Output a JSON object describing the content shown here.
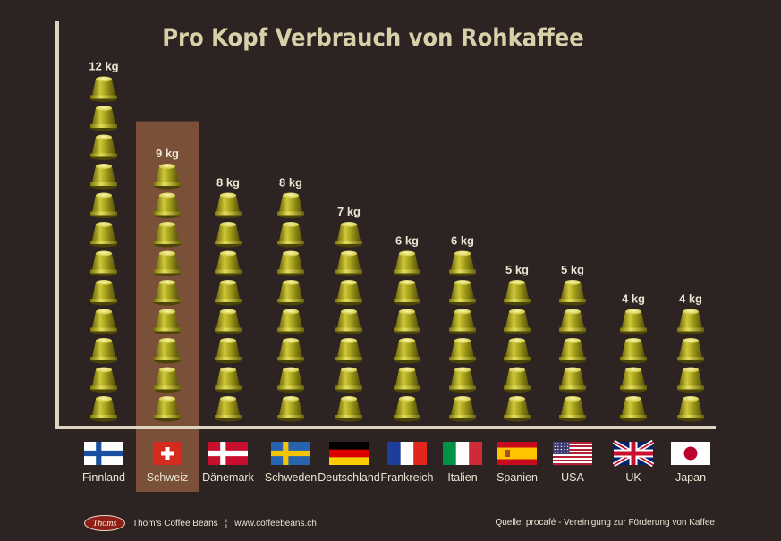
{
  "chart_data": {
    "type": "bar",
    "title": "Pro Kopf Verbrauch von Rohkaffee",
    "unit": "kg",
    "categories": [
      "Finnland",
      "Schweiz",
      "Dänemark",
      "Schweden",
      "Deutschland",
      "Frankreich",
      "Italien",
      "Spanien",
      "USA",
      "UK",
      "Japan"
    ],
    "values": [
      12,
      9,
      8,
      8,
      7,
      6,
      6,
      5,
      5,
      4,
      4
    ],
    "value_labels": [
      "12 kg",
      "9 kg",
      "8 kg",
      "8 kg",
      "7 kg",
      "6 kg",
      "6 kg",
      "5 kg",
      "5 kg",
      "4 kg",
      "4 kg"
    ],
    "highlight_category": "Schweiz",
    "mark_style": "coffee capsules stacked, one per kg",
    "flags": [
      "finland-flag",
      "switzerland-flag",
      "denmark-flag",
      "sweden-flag",
      "germany-flag",
      "france-flag",
      "italy-flag",
      "spain-flag",
      "usa-flag",
      "uk-flag",
      "japan-flag"
    ],
    "grid": false,
    "colors": {
      "background": "#2c2322",
      "axis": "#ddd5bf",
      "text": "#ebe4d2",
      "title": "#d9cfa8",
      "highlight": "#7a5038",
      "capsule": "#a8a21c"
    }
  },
  "footer": {
    "logo_text": "Thoms",
    "brand": "Thom's Coffee Beans",
    "separator": "¦",
    "website": "www.coffeebeans.ch",
    "source": "Quelle: procafé - Vereinigung zur Förderung von Kaffee"
  }
}
